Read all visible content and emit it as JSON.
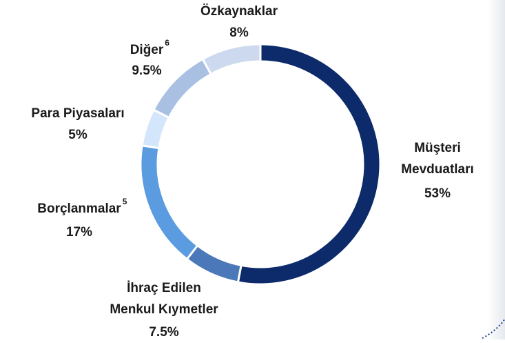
{
  "chart_data": {
    "type": "donut",
    "categories": [
      [
        "Müşteri",
        "Mevduatları"
      ],
      [
        "İhraç Edilen",
        "Menkul Kıymetler"
      ],
      [
        "Borçlanmalar"
      ],
      [
        "Para Piyasaları"
      ],
      [
        "Diğer"
      ],
      [
        "Özkaynaklar"
      ]
    ],
    "footnotes": [
      null,
      null,
      "5",
      null,
      "6",
      null
    ],
    "values": [
      53,
      7.5,
      17,
      5,
      9.5,
      8
    ],
    "value_labels": [
      "53%",
      "7.5%",
      "17%",
      "5%",
      "9.5%",
      "8%"
    ],
    "colors": [
      "#0d2a6b",
      "#4a78b8",
      "#5b9be0",
      "#d4e6fb",
      "#a9c0e3",
      "#cdd9ee"
    ]
  }
}
